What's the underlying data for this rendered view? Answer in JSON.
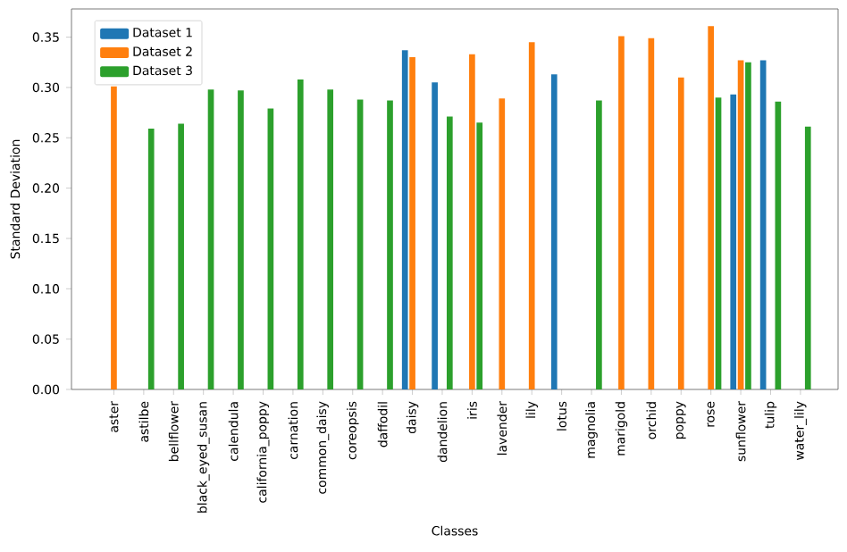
{
  "chart_data": {
    "type": "bar",
    "xlabel": "Classes",
    "ylabel": "Standard Deviation",
    "categories": [
      "aster",
      "astilbe",
      "bellflower",
      "black_eyed_susan",
      "calendula",
      "california_poppy",
      "carnation",
      "common_daisy",
      "coreopsis",
      "daffodil",
      "daisy",
      "dandelion",
      "iris",
      "lavender",
      "lily",
      "lotus",
      "magnolia",
      "marigold",
      "orchid",
      "poppy",
      "rose",
      "sunflower",
      "tulip",
      "water_lily"
    ],
    "series": [
      {
        "name": "Dataset 1",
        "color": "#1f77b4",
        "values": [
          null,
          null,
          null,
          null,
          null,
          null,
          null,
          null,
          null,
          null,
          0.337,
          0.305,
          null,
          null,
          null,
          0.313,
          null,
          null,
          null,
          null,
          null,
          0.293,
          0.327,
          null
        ]
      },
      {
        "name": "Dataset 2",
        "color": "#ff7f0e",
        "values": [
          0.301,
          null,
          null,
          null,
          null,
          null,
          null,
          null,
          null,
          null,
          0.33,
          null,
          0.333,
          0.289,
          0.345,
          null,
          null,
          0.351,
          0.349,
          0.31,
          0.361,
          0.327,
          null,
          null
        ]
      },
      {
        "name": "Dataset 3",
        "color": "#2ca02c",
        "values": [
          null,
          0.259,
          0.264,
          0.298,
          0.297,
          0.279,
          0.308,
          0.298,
          0.288,
          0.287,
          null,
          0.271,
          0.265,
          null,
          null,
          null,
          0.287,
          null,
          null,
          null,
          0.29,
          0.325,
          0.286,
          0.261
        ]
      }
    ],
    "ylim": [
      0,
      0.378
    ],
    "yticks": [
      {
        "value": 0,
        "label": "0.00"
      },
      0.05,
      {
        "value": 0.1,
        "label": "0.10"
      },
      0.15,
      {
        "value": 0.2,
        "label": "0.20"
      },
      0.25,
      {
        "value": 0.3,
        "label": "0.30"
      },
      0.35
    ],
    "legend": "top left"
  }
}
